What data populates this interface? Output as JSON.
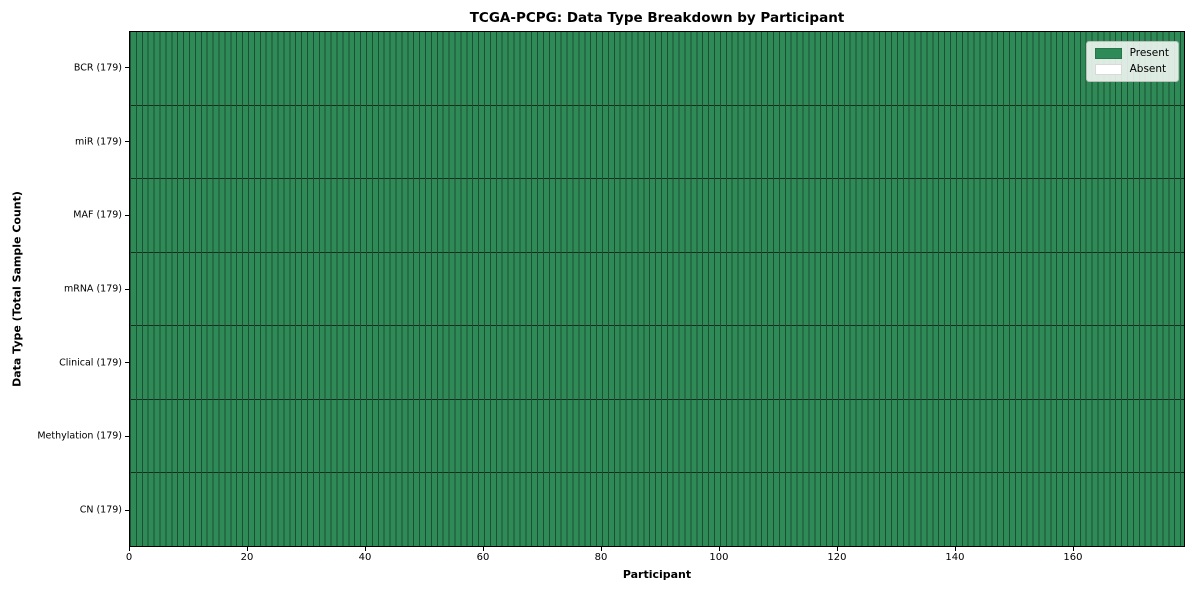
{
  "chart_data": {
    "type": "heatmap",
    "title": "TCGA-PCPG: Data Type Breakdown by Participant",
    "xlabel": "Participant",
    "ylabel": "Data Type (Total Sample Count)",
    "x_range": [
      0,
      179
    ],
    "x_ticks": [
      0,
      20,
      40,
      60,
      80,
      100,
      120,
      140,
      160
    ],
    "n_participants": 179,
    "rows": [
      {
        "label": "BCR (179)",
        "data_type": "BCR",
        "total_samples": 179,
        "present": 179,
        "absent": 0
      },
      {
        "label": "miR (179)",
        "data_type": "miR",
        "total_samples": 179,
        "present": 179,
        "absent": 0
      },
      {
        "label": "MAF (179)",
        "data_type": "MAF",
        "total_samples": 179,
        "present": 179,
        "absent": 0
      },
      {
        "label": "mRNA (179)",
        "data_type": "mRNA",
        "total_samples": 179,
        "present": 179,
        "absent": 0
      },
      {
        "label": "Clinical (179)",
        "data_type": "Clinical",
        "total_samples": 179,
        "present": 179,
        "absent": 0
      },
      {
        "label": "Methylation (179)",
        "data_type": "Methylation",
        "total_samples": 179,
        "present": 179,
        "absent": 0
      },
      {
        "label": "CN (179)",
        "data_type": "CN",
        "total_samples": 179,
        "present": 179,
        "absent": 0
      }
    ],
    "legend": {
      "position": "upper right",
      "entries": [
        {
          "label": "Present",
          "color": "#2e8b57"
        },
        {
          "label": "Absent",
          "color": "#ffffff"
        }
      ]
    },
    "colors": {
      "present": "#2e8b57",
      "absent": "#ffffff",
      "cell_edge": "#1e4f33",
      "row_divider": "#102e1d",
      "plot_border": "#000000"
    }
  }
}
